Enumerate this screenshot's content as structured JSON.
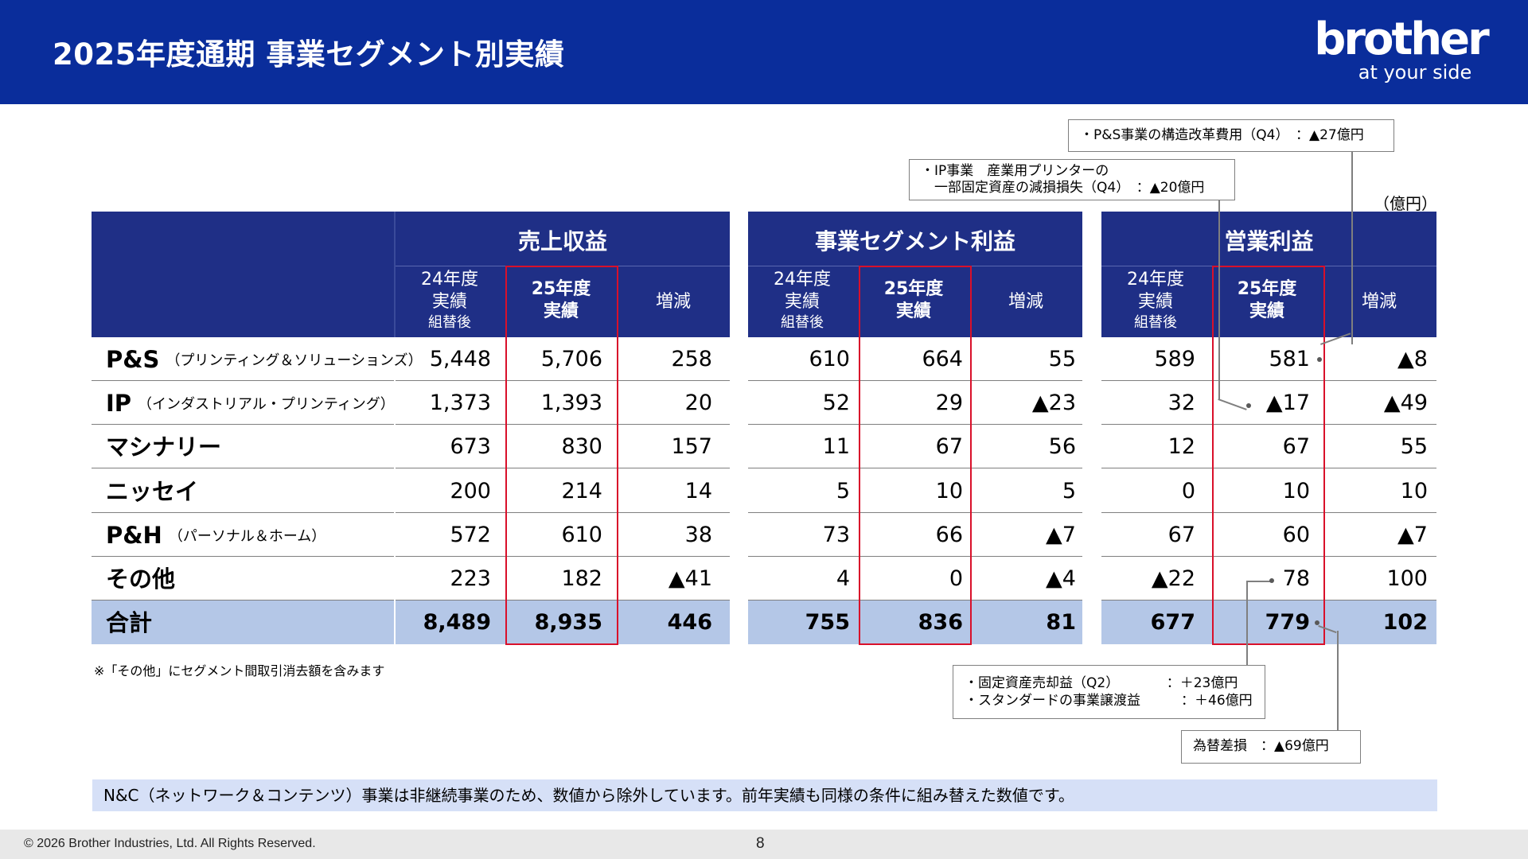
{
  "header": {
    "title": "2025年度通期 事業セグメント別実績",
    "logo_word": "brother",
    "logo_tagline": "at your side"
  },
  "unit": "（億円）",
  "sections": [
    {
      "title": "売上収益",
      "col_prev": "24年度\n実績",
      "col_prev_note": "組替後",
      "col_curr": "25年度\n実績",
      "col_diff": "増減"
    },
    {
      "title": "事業セグメント利益",
      "col_prev": "24年度\n実績",
      "col_prev_note": "組替後",
      "col_curr": "25年度\n実績",
      "col_diff": "増減"
    },
    {
      "title": "営業利益",
      "col_prev": "24年度\n実績",
      "col_prev_note": "組替後",
      "col_curr": "25年度\n実績",
      "col_diff": "増減"
    }
  ],
  "rows": [
    {
      "name": "P&S",
      "sub": "（プリンティング＆ソリューションズ）",
      "revenue": [
        "5,448",
        "5,706",
        "258"
      ],
      "segment_profit": [
        "610",
        "664",
        "55"
      ],
      "operating_profit": [
        "589",
        "581",
        "▲8"
      ]
    },
    {
      "name": "IP",
      "sub": "（インダストリアル・プリンティング）",
      "revenue": [
        "1,373",
        "1,393",
        "20"
      ],
      "segment_profit": [
        "52",
        "29",
        "▲23"
      ],
      "operating_profit": [
        "32",
        "▲17",
        "▲49"
      ]
    },
    {
      "name": "マシナリー",
      "sub": "",
      "revenue": [
        "673",
        "830",
        "157"
      ],
      "segment_profit": [
        "11",
        "67",
        "56"
      ],
      "operating_profit": [
        "12",
        "67",
        "55"
      ]
    },
    {
      "name": "ニッセイ",
      "sub": "",
      "revenue": [
        "200",
        "214",
        "14"
      ],
      "segment_profit": [
        "5",
        "10",
        "5"
      ],
      "operating_profit": [
        "0",
        "10",
        "10"
      ]
    },
    {
      "name": "P&H",
      "sub": "（パーソナル＆ホーム）",
      "revenue": [
        "572",
        "610",
        "38"
      ],
      "segment_profit": [
        "73",
        "66",
        "▲7"
      ],
      "operating_profit": [
        "67",
        "60",
        "▲7"
      ]
    },
    {
      "name": "その他",
      "sub": "",
      "revenue": [
        "223",
        "182",
        "▲41"
      ],
      "segment_profit": [
        "4",
        "0",
        "▲4"
      ],
      "operating_profit": [
        "▲22",
        "78",
        "100"
      ]
    }
  ],
  "total": {
    "name": "合計",
    "revenue": [
      "8,489",
      "8,935",
      "446"
    ],
    "segment_profit": [
      "755",
      "836",
      "81"
    ],
    "operating_profit": [
      "677",
      "779",
      "102"
    ]
  },
  "callouts": {
    "ps": "・P&S事業の構造改革費用（Q4）　：▲27億円",
    "ip_line1": "・IP事業　産業用プリンターの",
    "ip_line2": "　一部固定資産の減損損失（Q4）　：▲20億円",
    "other_line1": "・固定資産売却益（Q2）　　　　：＋23億円",
    "other_line2": "・スタンダードの事業譲渡益　　　：＋46億円",
    "fx": "為替差損　：▲69億円"
  },
  "footnote": "※「その他」にセグメント間取引消去額を含みます",
  "banner": "N&C（ネットワーク＆コンテンツ）事業は非継続事業のため、数値から除外しています。前年実績も同様の条件に組み替えた数値です。",
  "footer": {
    "copyright": "© 2026 Brother Industries, Ltd. All Rights Reserved.",
    "page": "8"
  }
}
